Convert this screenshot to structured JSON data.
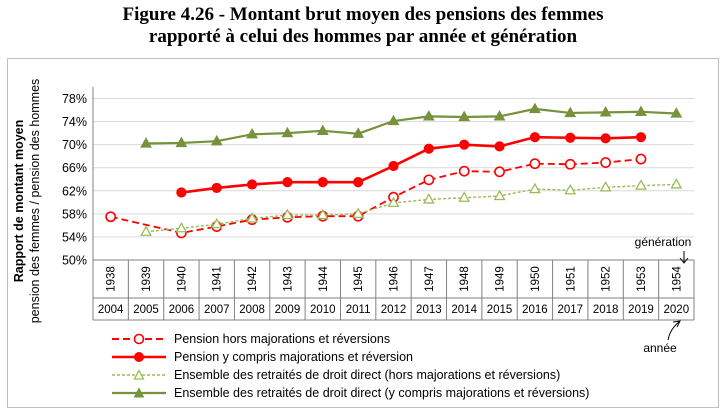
{
  "title_line1": "Figure 4.26 - Montant brut moyen des pensions des femmes",
  "title_line2": "rapporté à celui des hommes par année et génération",
  "colors": {
    "red": "#ff0000",
    "green_dark": "#76923c",
    "green_light": "#9bbb59",
    "grid": "#d9d9d9",
    "axis": "#808080"
  },
  "chart_data": {
    "type": "line",
    "ylabel_line1": "Rapport de montant moyen",
    "ylabel_line2": "pension des  femmes / pension des hommes",
    "ylim": [
      0.5,
      0.8
    ],
    "yticks": [
      "50%",
      "54%",
      "58%",
      "62%",
      "66%",
      "70%",
      "74%",
      "78%"
    ],
    "ytick_values": [
      0.5,
      0.54,
      0.58,
      0.62,
      0.66,
      0.7,
      0.74,
      0.78
    ],
    "generations": [
      "1938",
      "1939",
      "1940",
      "1941",
      "1942",
      "1943",
      "1944",
      "1945",
      "1946",
      "1947",
      "1948",
      "1949",
      "1950",
      "1951",
      "1952",
      "1953",
      "1954"
    ],
    "years": [
      "2004",
      "2005",
      "2006",
      "2007",
      "2008",
      "2009",
      "2010",
      "2011",
      "2012",
      "2013",
      "2014",
      "2015",
      "2016",
      "2017",
      "2018",
      "2019",
      "2020"
    ],
    "label_generation": "génération",
    "label_year": "année",
    "grid": true,
    "legend_position": "bottom",
    "series": [
      {
        "name": "Pension hors majorations et réversions",
        "color": "#ff0000",
        "dash": true,
        "marker": "circle-open",
        "values": [
          0.575,
          null,
          0.547,
          0.558,
          0.57,
          0.574,
          0.576,
          0.576,
          0.609,
          0.639,
          0.654,
          0.653,
          0.667,
          0.666,
          0.669,
          0.675,
          null
        ]
      },
      {
        "name": "Pension y compris majorations et réversion",
        "color": "#ff0000",
        "dash": false,
        "marker": "circle-filled",
        "values": [
          null,
          null,
          0.617,
          0.625,
          0.631,
          0.635,
          0.635,
          0.635,
          0.663,
          0.693,
          0.7,
          0.697,
          0.713,
          0.712,
          0.711,
          0.713,
          null
        ]
      },
      {
        "name": "Ensemble des retraités de droit direct (hors majorations et réversions)",
        "color": "#9bbb59",
        "dash": true,
        "marker": "triangle-open",
        "values": [
          null,
          0.549,
          0.555,
          0.562,
          0.572,
          0.578,
          0.578,
          0.58,
          0.599,
          0.605,
          0.608,
          0.611,
          0.623,
          0.621,
          0.626,
          0.629,
          0.631
        ]
      },
      {
        "name": "Ensemble des retraités de droit direct (y compris majorations et réversions)",
        "color": "#76923c",
        "dash": false,
        "marker": "triangle-filled",
        "values": [
          null,
          0.702,
          0.703,
          0.706,
          0.718,
          0.72,
          0.724,
          0.719,
          0.741,
          0.749,
          0.748,
          0.749,
          0.762,
          0.755,
          0.756,
          0.757,
          0.754
        ]
      }
    ]
  }
}
